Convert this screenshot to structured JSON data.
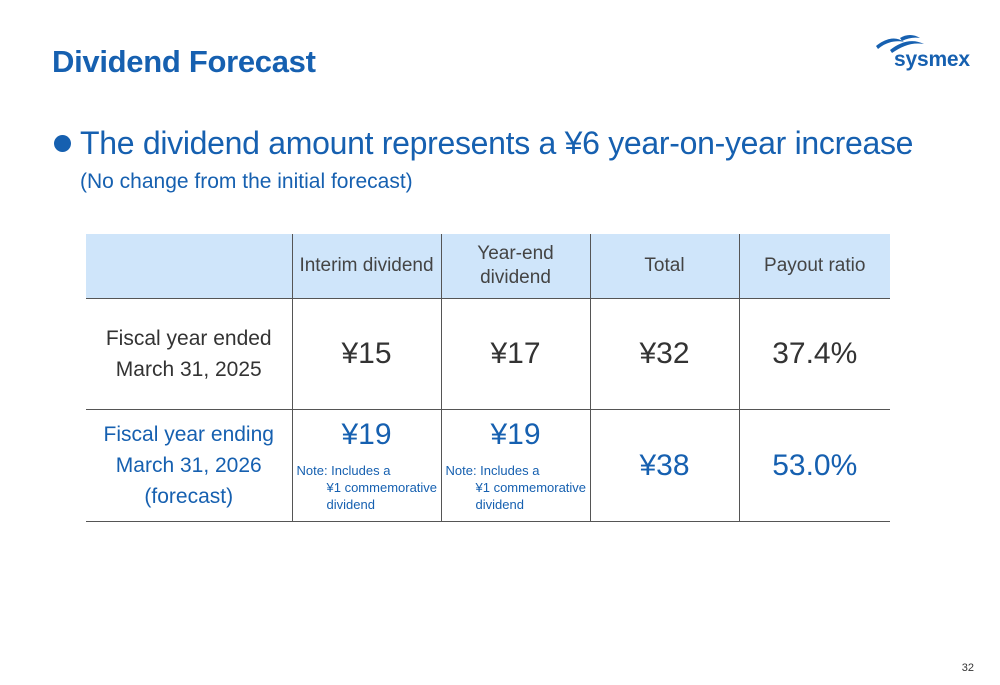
{
  "title": "Dividend Forecast",
  "logo": {
    "text": "sysmex",
    "icon": "sysmex-logo-mark"
  },
  "headline": "The dividend amount represents a ¥6 year-on-year increase",
  "subline": "(No change from the initial forecast)",
  "table": {
    "headers": [
      "",
      "Interim dividend",
      "Year-end\ndividend",
      "Total",
      "Payout ratio"
    ],
    "rows": [
      {
        "label": "Fiscal year ended\nMarch 31, 2025",
        "interim": "¥15",
        "year_end": "¥17",
        "total": "¥32",
        "payout": "37.4%"
      },
      {
        "label": "Fiscal year ending\nMarch 31, 2026\n(forecast)",
        "interim": "¥19",
        "interim_note": {
          "line1": "Note: Includes a",
          "line2": "¥1 commemorative",
          "line3": "dividend"
        },
        "year_end": "¥19",
        "year_end_note": {
          "line1": "Note: Includes a",
          "line2": "¥1 commemorative",
          "line3": "dividend"
        },
        "total": "¥38",
        "payout": "53.0%"
      }
    ]
  },
  "colors": {
    "accent": "#1660B0",
    "header_bg": "#CFE5FA",
    "text": "#333333"
  },
  "page_number": "32"
}
